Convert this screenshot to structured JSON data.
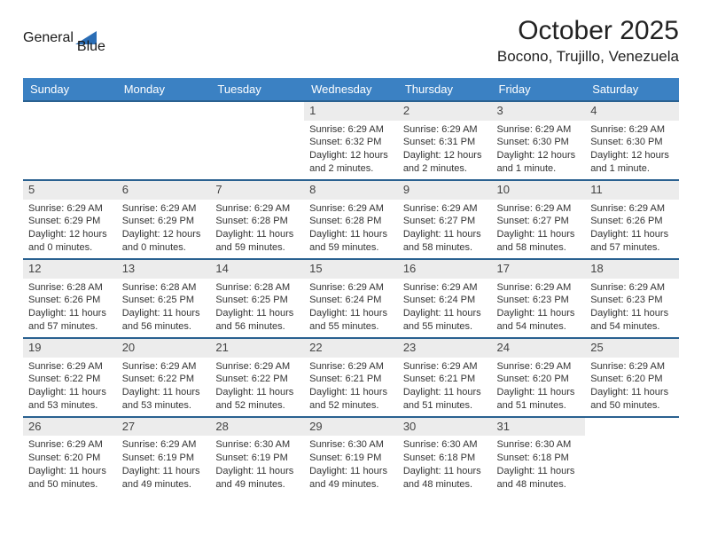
{
  "logo": {
    "part1": "General",
    "part2": "Blue"
  },
  "title": "October 2025",
  "location": "Bocono, Trujillo, Venezuela",
  "colors": {
    "header_bg": "#3b81c3",
    "header_text": "#ffffff",
    "row_divider": "#2a6190",
    "daynum_bg": "#ececec",
    "logo_gray": "#5f6b76",
    "logo_blue": "#2a6db5",
    "triangle": "#2a6db5",
    "page_bg": "#ffffff"
  },
  "day_names": [
    "Sunday",
    "Monday",
    "Tuesday",
    "Wednesday",
    "Thursday",
    "Friday",
    "Saturday"
  ],
  "weeks": [
    [
      null,
      null,
      null,
      {
        "n": "1",
        "sr": "6:29 AM",
        "ss": "6:32 PM",
        "dl": "12 hours and 2 minutes."
      },
      {
        "n": "2",
        "sr": "6:29 AM",
        "ss": "6:31 PM",
        "dl": "12 hours and 2 minutes."
      },
      {
        "n": "3",
        "sr": "6:29 AM",
        "ss": "6:30 PM",
        "dl": "12 hours and 1 minute."
      },
      {
        "n": "4",
        "sr": "6:29 AM",
        "ss": "6:30 PM",
        "dl": "12 hours and 1 minute."
      }
    ],
    [
      {
        "n": "5",
        "sr": "6:29 AM",
        "ss": "6:29 PM",
        "dl": "12 hours and 0 minutes."
      },
      {
        "n": "6",
        "sr": "6:29 AM",
        "ss": "6:29 PM",
        "dl": "12 hours and 0 minutes."
      },
      {
        "n": "7",
        "sr": "6:29 AM",
        "ss": "6:28 PM",
        "dl": "11 hours and 59 minutes."
      },
      {
        "n": "8",
        "sr": "6:29 AM",
        "ss": "6:28 PM",
        "dl": "11 hours and 59 minutes."
      },
      {
        "n": "9",
        "sr": "6:29 AM",
        "ss": "6:27 PM",
        "dl": "11 hours and 58 minutes."
      },
      {
        "n": "10",
        "sr": "6:29 AM",
        "ss": "6:27 PM",
        "dl": "11 hours and 58 minutes."
      },
      {
        "n": "11",
        "sr": "6:29 AM",
        "ss": "6:26 PM",
        "dl": "11 hours and 57 minutes."
      }
    ],
    [
      {
        "n": "12",
        "sr": "6:28 AM",
        "ss": "6:26 PM",
        "dl": "11 hours and 57 minutes."
      },
      {
        "n": "13",
        "sr": "6:28 AM",
        "ss": "6:25 PM",
        "dl": "11 hours and 56 minutes."
      },
      {
        "n": "14",
        "sr": "6:28 AM",
        "ss": "6:25 PM",
        "dl": "11 hours and 56 minutes."
      },
      {
        "n": "15",
        "sr": "6:29 AM",
        "ss": "6:24 PM",
        "dl": "11 hours and 55 minutes."
      },
      {
        "n": "16",
        "sr": "6:29 AM",
        "ss": "6:24 PM",
        "dl": "11 hours and 55 minutes."
      },
      {
        "n": "17",
        "sr": "6:29 AM",
        "ss": "6:23 PM",
        "dl": "11 hours and 54 minutes."
      },
      {
        "n": "18",
        "sr": "6:29 AM",
        "ss": "6:23 PM",
        "dl": "11 hours and 54 minutes."
      }
    ],
    [
      {
        "n": "19",
        "sr": "6:29 AM",
        "ss": "6:22 PM",
        "dl": "11 hours and 53 minutes."
      },
      {
        "n": "20",
        "sr": "6:29 AM",
        "ss": "6:22 PM",
        "dl": "11 hours and 53 minutes."
      },
      {
        "n": "21",
        "sr": "6:29 AM",
        "ss": "6:22 PM",
        "dl": "11 hours and 52 minutes."
      },
      {
        "n": "22",
        "sr": "6:29 AM",
        "ss": "6:21 PM",
        "dl": "11 hours and 52 minutes."
      },
      {
        "n": "23",
        "sr": "6:29 AM",
        "ss": "6:21 PM",
        "dl": "11 hours and 51 minutes."
      },
      {
        "n": "24",
        "sr": "6:29 AM",
        "ss": "6:20 PM",
        "dl": "11 hours and 51 minutes."
      },
      {
        "n": "25",
        "sr": "6:29 AM",
        "ss": "6:20 PM",
        "dl": "11 hours and 50 minutes."
      }
    ],
    [
      {
        "n": "26",
        "sr": "6:29 AM",
        "ss": "6:20 PM",
        "dl": "11 hours and 50 minutes."
      },
      {
        "n": "27",
        "sr": "6:29 AM",
        "ss": "6:19 PM",
        "dl": "11 hours and 49 minutes."
      },
      {
        "n": "28",
        "sr": "6:30 AM",
        "ss": "6:19 PM",
        "dl": "11 hours and 49 minutes."
      },
      {
        "n": "29",
        "sr": "6:30 AM",
        "ss": "6:19 PM",
        "dl": "11 hours and 49 minutes."
      },
      {
        "n": "30",
        "sr": "6:30 AM",
        "ss": "6:18 PM",
        "dl": "11 hours and 48 minutes."
      },
      {
        "n": "31",
        "sr": "6:30 AM",
        "ss": "6:18 PM",
        "dl": "11 hours and 48 minutes."
      },
      null
    ]
  ],
  "labels": {
    "sunrise": "Sunrise:",
    "sunset": "Sunset:",
    "daylight": "Daylight:"
  }
}
